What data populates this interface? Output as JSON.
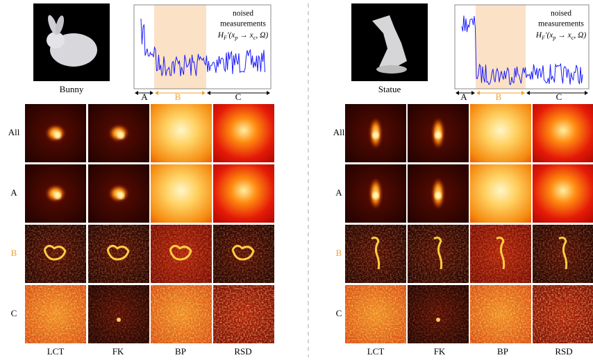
{
  "panels": [
    {
      "object": "Bunny",
      "plot": {
        "annotation": [
          "noised",
          "measurements"
        ],
        "formula": [
          "H",
          "F",
          "′(x",
          "p",
          " → x",
          "c",
          ", Ω)"
        ],
        "segments": [
          "A",
          "B",
          "C"
        ]
      },
      "rows": [
        "All",
        "A",
        "B",
        "C"
      ],
      "columns": [
        "LCT",
        "FK",
        "BP",
        "RSD"
      ]
    },
    {
      "object": "Statue",
      "plot": {
        "annotation": [
          "noised",
          "measurements"
        ],
        "formula": [
          "H",
          "F",
          "′(x",
          "p",
          " → x",
          "c",
          ", Ω)"
        ],
        "segments": [
          "A",
          "B",
          "C"
        ]
      },
      "rows": [
        "All",
        "A",
        "B",
        "C"
      ],
      "columns": [
        "LCT",
        "FK",
        "BP",
        "RSD"
      ]
    }
  ]
}
